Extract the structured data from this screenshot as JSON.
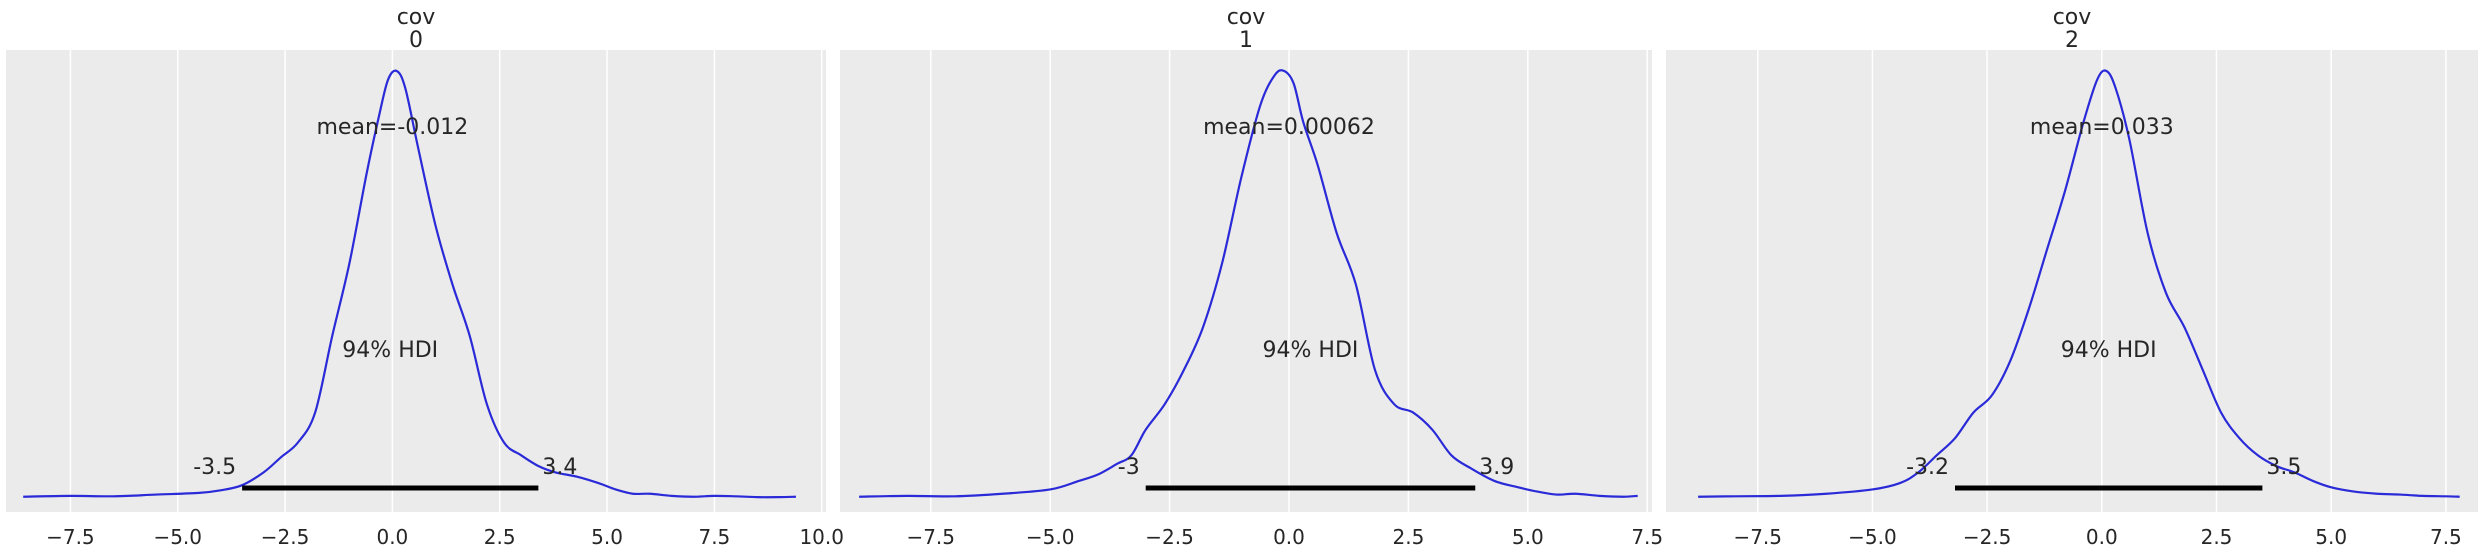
{
  "chart_data": [
    {
      "type": "line",
      "title_lines": [
        "cov",
        "0"
      ],
      "xlim": [
        -9.0,
        10.1
      ],
      "xticks": [
        -7.5,
        -5.0,
        -2.5,
        0.0,
        2.5,
        5.0,
        7.5,
        10.0
      ],
      "xtick_labels": [
        "−7.5",
        "−5.0",
        "−2.5",
        "0.0",
        "2.5",
        "5.0",
        "7.5",
        "10.0"
      ],
      "line_color": "#2a2ad8",
      "grid": true,
      "density": {
        "x": [
          -8.6,
          -7.5,
          -6.5,
          -5.5,
          -4.5,
          -4.0,
          -3.5,
          -3.0,
          -2.6,
          -2.2,
          -1.8,
          -1.4,
          -1.0,
          -0.6,
          -0.3,
          -0.1,
          0.1,
          0.3,
          0.6,
          1.0,
          1.4,
          1.8,
          2.2,
          2.6,
          3.0,
          3.4,
          3.8,
          4.3,
          4.8,
          5.2,
          5.6,
          6.0,
          6.5,
          7.0,
          7.5,
          8.0,
          8.5,
          9.0,
          9.4
        ],
        "y": [
          0.003,
          0.005,
          0.004,
          0.008,
          0.012,
          0.018,
          0.03,
          0.06,
          0.095,
          0.13,
          0.2,
          0.38,
          0.55,
          0.76,
          0.9,
          0.98,
          1.0,
          0.96,
          0.82,
          0.64,
          0.5,
          0.38,
          0.22,
          0.13,
          0.1,
          0.075,
          0.06,
          0.05,
          0.035,
          0.02,
          0.01,
          0.01,
          0.005,
          0.003,
          0.005,
          0.004,
          0.002,
          0.002,
          0.003
        ]
      },
      "mean_label": "mean=-0.012",
      "hdi_label": "94% HDI",
      "hdi": [
        -3.5,
        3.4
      ],
      "hdi_low_label": "-3.5",
      "hdi_high_label": "3.4"
    },
    {
      "type": "line",
      "title_lines": [
        "cov",
        "1"
      ],
      "xlim": [
        -9.4,
        7.6
      ],
      "xticks": [
        -7.5,
        -5.0,
        -2.5,
        0.0,
        2.5,
        5.0,
        7.5
      ],
      "xtick_labels": [
        "−7.5",
        "−5.0",
        "−2.5",
        "0.0",
        "2.5",
        "5.0",
        "7.5"
      ],
      "line_color": "#2a2ad8",
      "grid": true,
      "density": {
        "x": [
          -9.0,
          -8.0,
          -7.0,
          -6.0,
          -5.0,
          -4.4,
          -4.0,
          -3.6,
          -3.3,
          -3.0,
          -2.6,
          -2.2,
          -1.8,
          -1.4,
          -1.0,
          -0.6,
          -0.3,
          -0.1,
          0.1,
          0.3,
          0.6,
          1.0,
          1.4,
          1.8,
          2.2,
          2.6,
          3.0,
          3.4,
          3.8,
          4.3,
          4.8,
          5.2,
          5.6,
          6.0,
          6.5,
          7.0,
          7.3
        ],
        "y": [
          0.003,
          0.005,
          0.004,
          0.01,
          0.02,
          0.04,
          0.055,
          0.08,
          0.1,
          0.16,
          0.22,
          0.3,
          0.4,
          0.55,
          0.75,
          0.92,
          0.99,
          1.0,
          0.97,
          0.88,
          0.78,
          0.62,
          0.5,
          0.3,
          0.22,
          0.2,
          0.16,
          0.1,
          0.07,
          0.04,
          0.025,
          0.015,
          0.008,
          0.01,
          0.005,
          0.003,
          0.005
        ]
      },
      "mean_label": "mean=0.00062",
      "hdi_label": "94% HDI",
      "hdi": [
        -3.0,
        3.9
      ],
      "hdi_low_label": "-3",
      "hdi_high_label": "3.9"
    },
    {
      "type": "line",
      "title_lines": [
        "cov",
        "2"
      ],
      "xlim": [
        -9.5,
        8.2
      ],
      "xticks": [
        -7.5,
        -5.0,
        -2.5,
        0.0,
        2.5,
        5.0,
        7.5
      ],
      "xtick_labels": [
        "−7.5",
        "−5.0",
        "−2.5",
        "0.0",
        "2.5",
        "5.0",
        "7.5"
      ],
      "line_color": "#2a2ad8",
      "grid": true,
      "density": {
        "x": [
          -8.8,
          -8.0,
          -7.0,
          -6.0,
          -5.0,
          -4.4,
          -4.0,
          -3.6,
          -3.2,
          -2.8,
          -2.4,
          -2.0,
          -1.6,
          -1.2,
          -0.8,
          -0.4,
          -0.1,
          0.1,
          0.3,
          0.6,
          1.0,
          1.4,
          1.8,
          2.2,
          2.6,
          3.0,
          3.4,
          3.8,
          4.2,
          4.6,
          5.0,
          5.5,
          6.0,
          6.5,
          7.0,
          7.5,
          7.8
        ],
        "y": [
          0.003,
          0.004,
          0.005,
          0.01,
          0.02,
          0.035,
          0.06,
          0.1,
          0.14,
          0.2,
          0.24,
          0.32,
          0.44,
          0.58,
          0.72,
          0.88,
          0.98,
          1.0,
          0.96,
          0.84,
          0.62,
          0.48,
          0.4,
          0.3,
          0.2,
          0.14,
          0.1,
          0.075,
          0.06,
          0.04,
          0.025,
          0.015,
          0.01,
          0.008,
          0.005,
          0.004,
          0.003
        ]
      },
      "mean_label": "mean=0.033",
      "hdi_label": "94% HDI",
      "hdi": [
        -3.2,
        3.5
      ],
      "hdi_low_label": "-3.2",
      "hdi_high_label": "3.5"
    }
  ]
}
